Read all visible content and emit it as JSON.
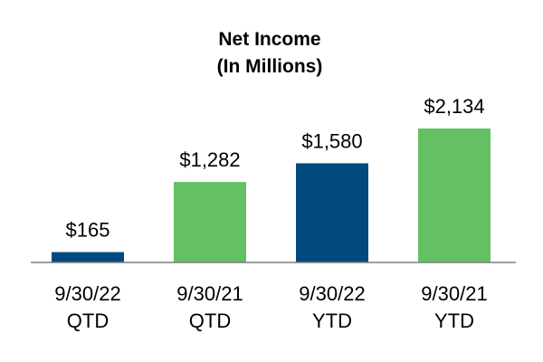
{
  "chart_data": {
    "type": "bar",
    "title": "Net Income",
    "subtitle": "(In Millions)",
    "categories": [
      [
        "9/30/22",
        "QTD"
      ],
      [
        "9/30/21",
        "QTD"
      ],
      [
        "9/30/22",
        "YTD"
      ],
      [
        "9/30/21",
        "YTD"
      ]
    ],
    "values": [
      165,
      1282,
      1580,
      2134
    ],
    "value_labels": [
      "$165",
      "$1,282",
      "$1,580",
      "$2,134"
    ],
    "bar_colors": [
      "#014a80",
      "#63c063",
      "#014a80",
      "#63c063"
    ],
    "xlabel": "",
    "ylabel": "",
    "ylim": [
      0,
      2134
    ],
    "grid": false,
    "legend": "none"
  },
  "colors": {
    "navy": "#014a80",
    "green": "#63c063",
    "axis": "#7f7f7f"
  }
}
